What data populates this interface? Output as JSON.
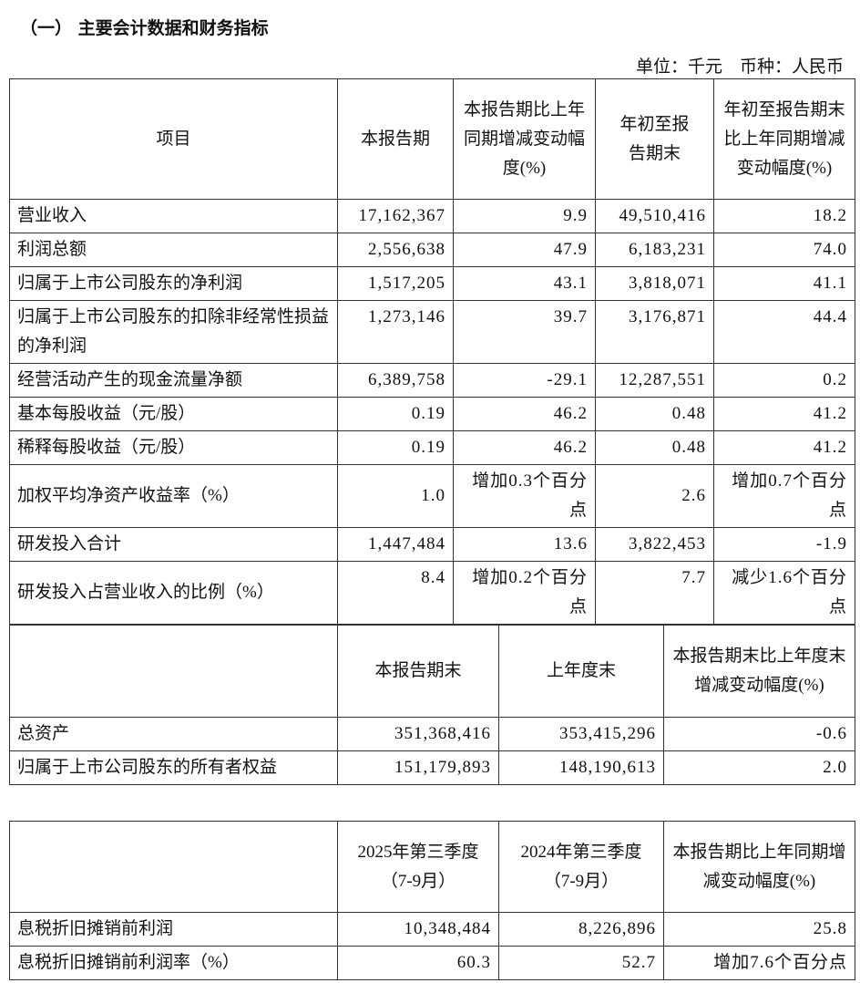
{
  "title": "（一） 主要会计数据和财务指标",
  "unit": "单位：千元　币种：人民币",
  "table1": {
    "headers": [
      "项目",
      "本报告期",
      "本报告期比上年同期增减变动幅度(%)",
      "年初至报告期末",
      "年初至报告期末比上年同期增减变动幅度(%)"
    ],
    "rows": [
      [
        "营业收入",
        "17,162,367",
        "9.9",
        "49,510,416",
        "18.2"
      ],
      [
        "利润总额",
        "2,556,638",
        "47.9",
        "6,183,231",
        "74.0"
      ],
      [
        "归属于上市公司股东的净利润",
        "1,517,205",
        "43.1",
        "3,818,071",
        "41.1"
      ],
      [
        "归属于上市公司股东的扣除非经常性损益的净利润",
        "1,273,146",
        "39.7",
        "3,176,871",
        "44.4"
      ],
      [
        "经营活动产生的现金流量净额",
        "6,389,758",
        "-29.1",
        "12,287,551",
        "0.2"
      ],
      [
        "基本每股收益（元/股）",
        "0.19",
        "46.2",
        "0.48",
        "41.2"
      ],
      [
        "稀释每股收益（元/股）",
        "0.19",
        "46.2",
        "0.48",
        "41.2"
      ],
      [
        "加权平均净资产收益率（%）",
        "1.0",
        "增加0.3个百分点",
        "2.6",
        "增加0.7个百分点"
      ],
      [
        "研发投入合计",
        "1,447,484",
        "13.6",
        "3,822,453",
        "-1.9"
      ],
      [
        "研发投入占营业收入的比例（%）",
        "8.4",
        "增加0.2个百分点",
        "7.7",
        "减少1.6个百分点"
      ]
    ]
  },
  "table2": {
    "headers": [
      "",
      "本报告期末",
      "上年度末",
      "本报告期末比上年度末增减变动幅度(%)"
    ],
    "rows": [
      [
        "总资产",
        "351,368,416",
        "353,415,296",
        "-0.6"
      ],
      [
        "归属于上市公司股东的所有者权益",
        "151,179,893",
        "148,190,613",
        "2.0"
      ]
    ]
  },
  "table3": {
    "headers": [
      "",
      "2025年第三季度（7-9月）",
      "2024年第三季度（7-9月）",
      "本报告期比上年同期增减变动幅度(%)"
    ],
    "rows": [
      [
        "息税折旧摊销前利润",
        "10,348,484",
        "8,226,896",
        "25.8"
      ],
      [
        "息税折旧摊销前利润率（%）",
        "60.3",
        "52.7",
        "增加7.6个百分点"
      ]
    ]
  }
}
